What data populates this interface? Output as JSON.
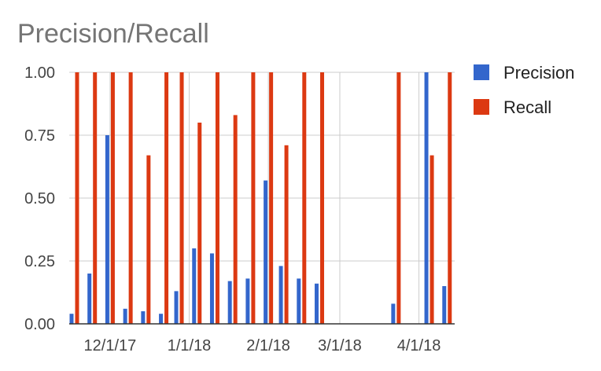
{
  "chart_data": {
    "type": "bar",
    "title": "Precision/Recall",
    "xlabel": "",
    "ylabel": "",
    "ylim": [
      0,
      1
    ],
    "y_ticks": [
      "0.00",
      "0.25",
      "0.50",
      "0.75",
      "1.00"
    ],
    "x_ticks": [
      {
        "date": "2017-12-01",
        "label": "12/1/17"
      },
      {
        "date": "2018-01-01",
        "label": "1/1/18"
      },
      {
        "date": "2018-02-01",
        "label": "2/1/18"
      },
      {
        "date": "2018-03-01",
        "label": "3/1/18"
      },
      {
        "date": "2018-04-01",
        "label": "4/1/18"
      }
    ],
    "x_range": [
      "2017-11-15",
      "2018-04-15"
    ],
    "grid": true,
    "legend": "right",
    "x": [
      "2017-11-17",
      "2017-11-24",
      "2017-12-01",
      "2017-12-08",
      "2017-12-15",
      "2017-12-22",
      "2017-12-28",
      "2018-01-04",
      "2018-01-11",
      "2018-01-18",
      "2018-01-25",
      "2018-02-01",
      "2018-02-07",
      "2018-02-14",
      "2018-02-21",
      "2018-03-23",
      "2018-04-05",
      "2018-04-12"
    ],
    "series": [
      {
        "name": "Precision",
        "color": "#3366cc",
        "values": [
          0.04,
          0.2,
          0.75,
          0.06,
          0.05,
          0.04,
          0.13,
          0.3,
          0.28,
          0.17,
          0.18,
          0.57,
          0.23,
          0.18,
          0.16,
          0.08,
          1.0,
          0.15
        ]
      },
      {
        "name": "Recall",
        "color": "#dc3912",
        "values": [
          1.0,
          1.0,
          1.0,
          1.0,
          0.67,
          1.0,
          1.0,
          0.8,
          1.0,
          0.83,
          1.0,
          1.0,
          0.71,
          1.0,
          1.0,
          1.0,
          0.67,
          1.0
        ]
      }
    ]
  }
}
